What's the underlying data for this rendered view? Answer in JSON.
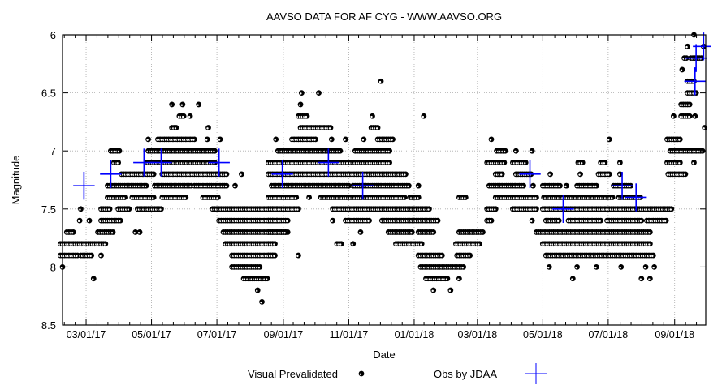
{
  "chart_data": {
    "type": "scatter",
    "title": "AAVSO DATA FOR AF CYG - WWW.AAVSO.ORG",
    "xlabel": "Date",
    "ylabel": "Magnitude",
    "xlim": [
      "2017-02-07",
      "2018-09-30"
    ],
    "ylim": [
      8.5,
      6
    ],
    "y_reversed": true,
    "grid": true,
    "legend_placement": "bottom",
    "x_ticks": [
      {
        "date": "2017-03-01",
        "label": "03/01/17"
      },
      {
        "date": "2017-05-01",
        "label": "05/01/17"
      },
      {
        "date": "2017-07-01",
        "label": "07/01/17"
      },
      {
        "date": "2017-09-01",
        "label": "09/01/17"
      },
      {
        "date": "2017-11-01",
        "label": "11/01/17"
      },
      {
        "date": "2018-01-01",
        "label": "01/01/18"
      },
      {
        "date": "2018-03-01",
        "label": "03/01/18"
      },
      {
        "date": "2018-05-01",
        "label": "05/01/18"
      },
      {
        "date": "2018-07-01",
        "label": "07/01/18"
      },
      {
        "date": "2018-09-01",
        "label": "09/01/18"
      }
    ],
    "y_ticks": [
      {
        "value": 6,
        "label": "6"
      },
      {
        "value": 6.5,
        "label": "6.5"
      },
      {
        "value": 7,
        "label": "7"
      },
      {
        "value": 7.5,
        "label": "7.5"
      },
      {
        "value": 8,
        "label": "8"
      },
      {
        "value": 8.5,
        "label": "8.5"
      }
    ],
    "series": [
      {
        "name": "Visual Prevalidated",
        "marker": "circle",
        "color": "#000000",
        "runs": [
          [
            7.8,
            "2017-02-05",
            "2017-03-19"
          ],
          [
            7.9,
            "2017-02-05",
            "2017-02-21"
          ],
          [
            7.9,
            "2017-02-24",
            "2017-03-06"
          ],
          [
            7.7,
            "2017-02-11",
            "2017-02-18"
          ],
          [
            7.7,
            "2017-03-12",
            "2017-03-27"
          ],
          [
            7.6,
            "2017-03-15",
            "2017-04-03"
          ],
          [
            7.5,
            "2017-03-15",
            "2017-03-23"
          ],
          [
            7.5,
            "2017-03-31",
            "2017-04-11"
          ],
          [
            7.5,
            "2017-04-18",
            "2017-05-11"
          ],
          [
            7.4,
            "2017-03-21",
            "2017-04-07"
          ],
          [
            7.4,
            "2017-04-13",
            "2017-05-04"
          ],
          [
            7.4,
            "2017-05-11",
            "2017-06-03"
          ],
          [
            7.4,
            "2017-06-18",
            "2017-07-03"
          ],
          [
            7.3,
            "2017-03-21",
            "2017-04-26"
          ],
          [
            7.3,
            "2017-05-04",
            "2017-06-07"
          ],
          [
            7.3,
            "2017-06-10",
            "2017-07-11"
          ],
          [
            7.2,
            "2017-04-03",
            "2017-05-04"
          ],
          [
            7.2,
            "2017-05-11",
            "2017-07-11"
          ],
          [
            7.1,
            "2017-03-27",
            "2017-03-31"
          ],
          [
            7.1,
            "2017-04-26",
            "2017-06-29"
          ],
          [
            7.0,
            "2017-03-24",
            "2017-04-02"
          ],
          [
            7.0,
            "2017-04-28",
            "2017-06-29"
          ],
          [
            6.9,
            "2017-05-07",
            "2017-06-10"
          ],
          [
            6.8,
            "2017-05-20",
            "2017-05-24"
          ],
          [
            6.7,
            "2017-05-27",
            "2017-06-01"
          ],
          [
            7.5,
            "2017-06-27",
            "2017-08-29"
          ],
          [
            7.6,
            "2017-07-03",
            "2017-08-29"
          ],
          [
            7.7,
            "2017-07-07",
            "2017-09-06"
          ],
          [
            7.8,
            "2017-07-09",
            "2017-08-25"
          ],
          [
            7.9,
            "2017-07-15",
            "2017-08-25"
          ],
          [
            8.0,
            "2017-07-15",
            "2017-08-10"
          ],
          [
            8.1,
            "2017-07-26",
            "2017-08-18"
          ],
          [
            6.7,
            "2017-09-15",
            "2017-09-23"
          ],
          [
            6.8,
            "2017-09-17",
            "2017-10-10"
          ],
          [
            6.8,
            "2017-10-11",
            "2017-10-16"
          ],
          [
            6.8,
            "2017-11-22",
            "2017-11-28"
          ],
          [
            6.9,
            "2017-09-09",
            "2017-10-02"
          ],
          [
            6.9,
            "2017-11-28",
            "2017-12-13"
          ],
          [
            7.0,
            "2017-08-27",
            "2017-10-25"
          ],
          [
            7.0,
            "2017-11-07",
            "2017-12-09"
          ],
          [
            7.1,
            "2017-08-18",
            "2017-11-01"
          ],
          [
            7.1,
            "2017-11-03",
            "2017-12-09"
          ],
          [
            7.2,
            "2017-08-18",
            "2017-12-24"
          ],
          [
            7.3,
            "2017-08-21",
            "2017-11-01"
          ],
          [
            7.3,
            "2017-11-05",
            "2017-12-28"
          ],
          [
            7.4,
            "2017-08-18",
            "2017-09-13"
          ],
          [
            7.4,
            "2017-10-06",
            "2017-12-24"
          ],
          [
            7.4,
            "2017-12-28",
            "2018-01-05"
          ],
          [
            7.4,
            "2018-02-12",
            "2018-02-19"
          ],
          [
            7.5,
            "2017-08-18",
            "2017-09-15"
          ],
          [
            7.5,
            "2017-10-17",
            "2018-01-16"
          ],
          [
            7.6,
            "2017-08-18",
            "2017-09-06"
          ],
          [
            7.6,
            "2017-10-29",
            "2017-11-20"
          ],
          [
            7.6,
            "2017-12-02",
            "2018-01-24"
          ],
          [
            7.7,
            "2017-08-18",
            "2017-09-03"
          ],
          [
            7.7,
            "2017-12-08",
            "2017-12-31"
          ],
          [
            7.7,
            "2018-01-05",
            "2018-01-20"
          ],
          [
            7.7,
            "2018-02-12",
            "2018-03-06"
          ],
          [
            7.8,
            "2017-08-18",
            "2017-08-25"
          ],
          [
            7.8,
            "2017-10-21",
            "2017-10-25"
          ],
          [
            7.8,
            "2017-12-15",
            "2018-01-09"
          ],
          [
            7.8,
            "2018-02-09",
            "2018-03-03"
          ],
          [
            7.9,
            "2017-08-18",
            "2017-08-24"
          ],
          [
            7.9,
            "2018-01-05",
            "2018-01-28"
          ],
          [
            7.9,
            "2018-02-10",
            "2018-02-23"
          ],
          [
            8.0,
            "2018-01-07",
            "2018-02-17"
          ],
          [
            8.1,
            "2018-01-12",
            "2018-02-02"
          ],
          [
            7.0,
            "2018-03-19",
            "2018-03-27"
          ],
          [
            7.1,
            "2018-03-10",
            "2018-03-27"
          ],
          [
            7.1,
            "2018-04-03",
            "2018-04-15"
          ],
          [
            7.1,
            "2018-06-03",
            "2018-06-08"
          ],
          [
            7.1,
            "2018-06-24",
            "2018-06-28"
          ],
          [
            7.2,
            "2018-03-18",
            "2018-03-24"
          ],
          [
            7.2,
            "2018-04-06",
            "2018-04-21"
          ],
          [
            7.2,
            "2018-06-22",
            "2018-07-03"
          ],
          [
            7.3,
            "2018-03-12",
            "2018-04-13"
          ],
          [
            7.3,
            "2018-05-01",
            "2018-05-17"
          ],
          [
            7.3,
            "2018-06-02",
            "2018-06-20"
          ],
          [
            7.3,
            "2018-07-06",
            "2018-07-23"
          ],
          [
            7.4,
            "2018-03-18",
            "2018-04-26"
          ],
          [
            7.4,
            "2018-05-02",
            "2018-07-06"
          ],
          [
            7.4,
            "2018-07-11",
            "2018-08-01"
          ],
          [
            7.5,
            "2018-03-10",
            "2018-03-19"
          ],
          [
            7.5,
            "2018-04-03",
            "2018-04-25"
          ],
          [
            7.5,
            "2018-05-01",
            "2018-08-29"
          ],
          [
            7.6,
            "2018-03-10",
            "2018-03-14"
          ],
          [
            7.6,
            "2018-05-04",
            "2018-05-17"
          ],
          [
            7.6,
            "2018-05-25",
            "2018-06-24"
          ],
          [
            7.6,
            "2018-06-30",
            "2018-08-01"
          ],
          [
            7.6,
            "2018-08-06",
            "2018-08-24"
          ],
          [
            7.7,
            "2018-04-25",
            "2018-08-09"
          ],
          [
            7.8,
            "2018-05-01",
            "2018-08-09"
          ],
          [
            7.9,
            "2018-05-04",
            "2018-08-13"
          ],
          [
            7.2,
            "2018-08-26",
            "2018-09-12"
          ],
          [
            7.1,
            "2018-08-25",
            "2018-09-07"
          ],
          [
            7.0,
            "2018-08-28",
            "2018-09-27"
          ],
          [
            6.9,
            "2018-08-25",
            "2018-09-06"
          ],
          [
            6.7,
            "2018-09-07",
            "2018-09-16"
          ],
          [
            6.6,
            "2018-09-07",
            "2018-09-16"
          ],
          [
            6.5,
            "2018-09-13",
            "2018-09-21"
          ],
          [
            6.4,
            "2018-09-13",
            "2018-09-19"
          ],
          [
            6.2,
            "2018-09-10",
            "2018-09-12"
          ],
          [
            6.2,
            "2018-09-16",
            "2018-09-27"
          ]
        ],
        "points": [
          [
            "2017-03-15",
            7.9
          ],
          [
            "2017-02-07",
            8.0
          ],
          [
            "2017-03-08",
            8.1
          ],
          [
            "2017-02-23",
            7.6
          ],
          [
            "2017-03-04",
            7.6
          ],
          [
            "2017-02-24",
            7.5
          ],
          [
            "2017-04-16",
            7.7
          ],
          [
            "2017-04-20",
            7.7
          ],
          [
            "2017-04-28",
            6.9
          ],
          [
            "2017-06-22",
            6.9
          ],
          [
            "2017-07-04",
            6.9
          ],
          [
            "2017-06-23",
            6.8
          ],
          [
            "2017-06-06",
            6.7
          ],
          [
            "2017-05-20",
            6.6
          ],
          [
            "2017-05-30",
            6.6
          ],
          [
            "2017-06-14",
            6.6
          ],
          [
            "2017-07-18",
            7.3
          ],
          [
            "2017-07-24",
            7.2
          ],
          [
            "2017-08-08",
            8.2
          ],
          [
            "2017-08-12",
            8.3
          ],
          [
            "2017-12-01",
            6.4
          ],
          [
            "2017-09-18",
            6.5
          ],
          [
            "2017-10-04",
            6.5
          ],
          [
            "2017-09-17",
            6.6
          ],
          [
            "2017-11-23",
            6.7
          ],
          [
            "2018-01-10",
            6.7
          ],
          [
            "2017-08-25",
            6.9
          ],
          [
            "2017-10-16",
            6.9
          ],
          [
            "2017-10-29",
            6.9
          ],
          [
            "2017-11-15",
            6.9
          ],
          [
            "2018-01-05",
            7.3
          ],
          [
            "2017-09-25",
            7.4
          ],
          [
            "2017-10-17",
            7.6
          ],
          [
            "2017-11-12",
            7.7
          ],
          [
            "2017-11-05",
            7.8
          ],
          [
            "2017-09-15",
            7.9
          ],
          [
            "2018-02-12",
            8.1
          ],
          [
            "2018-01-19",
            8.2
          ],
          [
            "2018-02-04",
            8.2
          ],
          [
            "2018-03-14",
            6.9
          ],
          [
            "2018-07-02",
            6.9
          ],
          [
            "2018-04-06",
            7.0
          ],
          [
            "2018-04-21",
            7.0
          ],
          [
            "2018-07-12",
            7.1
          ],
          [
            "2018-05-08",
            7.2
          ],
          [
            "2018-06-05",
            7.2
          ],
          [
            "2018-07-12",
            7.2
          ],
          [
            "2018-04-22",
            7.3
          ],
          [
            "2018-05-23",
            7.3
          ],
          [
            "2018-04-21",
            7.6
          ],
          [
            "2018-05-07",
            8.0
          ],
          [
            "2018-06-02",
            8.0
          ],
          [
            "2018-06-20",
            8.0
          ],
          [
            "2018-07-13",
            8.0
          ],
          [
            "2018-08-05",
            8.0
          ],
          [
            "2018-08-13",
            8.0
          ],
          [
            "2018-05-29",
            8.1
          ],
          [
            "2018-08-01",
            8.1
          ],
          [
            "2018-08-09",
            8.1
          ],
          [
            "2018-09-19",
            7.1
          ],
          [
            "2018-09-29",
            6.8
          ],
          [
            "2018-08-31",
            6.7
          ],
          [
            "2018-09-20",
            6.7
          ],
          [
            "2018-09-08",
            6.3
          ],
          [
            "2018-09-13",
            6.1
          ],
          [
            "2018-09-28",
            6.1
          ],
          [
            "2018-09-19",
            6.0
          ]
        ]
      },
      {
        "name": "Obs by JDAA",
        "marker": "cross",
        "color": "#0000ff",
        "points": [
          {
            "date": "2017-02-27",
            "mag": 7.3,
            "xerr_days": 10,
            "yerr": 0.12
          },
          {
            "date": "2017-03-24",
            "mag": 7.2,
            "xerr_days": 10,
            "yerr": 0.12
          },
          {
            "date": "2017-04-24",
            "mag": 7.1,
            "xerr_days": 10,
            "yerr": 0.12
          },
          {
            "date": "2017-05-10",
            "mag": 7.1,
            "xerr_days": 10,
            "yerr": 0.12
          },
          {
            "date": "2017-07-03",
            "mag": 7.1,
            "xerr_days": 10,
            "yerr": 0.12
          },
          {
            "date": "2017-08-31",
            "mag": 7.2,
            "xerr_days": 10,
            "yerr": 0.12
          },
          {
            "date": "2017-10-13",
            "mag": 7.1,
            "xerr_days": 10,
            "yerr": 0.12
          },
          {
            "date": "2017-11-14",
            "mag": 7.3,
            "xerr_days": 10,
            "yerr": 0.12
          },
          {
            "date": "2018-04-19",
            "mag": 7.2,
            "xerr_days": 10,
            "yerr": 0.12
          },
          {
            "date": "2018-05-20",
            "mag": 7.5,
            "xerr_days": 10,
            "yerr": 0.12
          },
          {
            "date": "2018-07-14",
            "mag": 7.3,
            "xerr_days": 10,
            "yerr": 0.12
          },
          {
            "date": "2018-07-27",
            "mag": 7.4,
            "xerr_days": 10,
            "yerr": 0.12
          },
          {
            "date": "2018-09-20",
            "mag": 6.4,
            "xerr_days": 10,
            "yerr": 0.12
          },
          {
            "date": "2018-09-21",
            "mag": 6.2,
            "xerr_days": 10,
            "yerr": 0.12
          },
          {
            "date": "2018-09-28",
            "mag": 6.1,
            "xerr_days": 10,
            "yerr": 0.12
          }
        ]
      }
    ],
    "legend": [
      {
        "label": "Visual Prevalidated",
        "marker": "circle"
      },
      {
        "label": "Obs by JDAA",
        "marker": "cross"
      }
    ]
  }
}
